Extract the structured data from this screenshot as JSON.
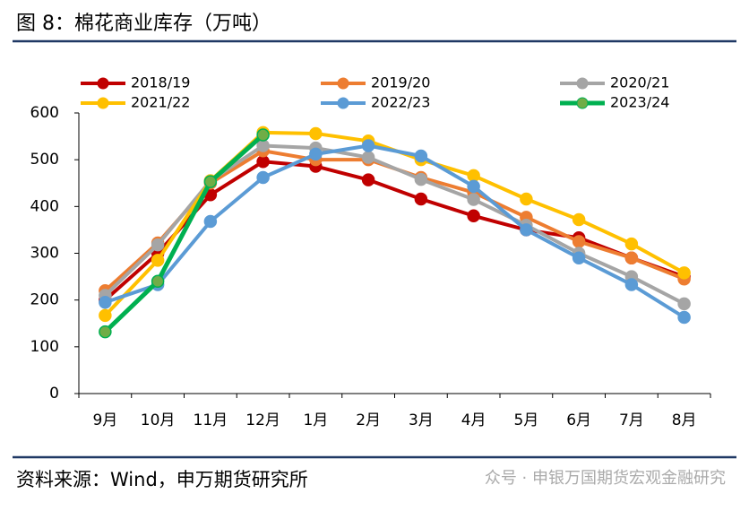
{
  "chart_data": {
    "type": "line",
    "title": "图 8：棉花商业库存（万吨）",
    "source": "资料来源：Wind，申万期货研究所",
    "watermark": "众号 · 申银万国期货宏观金融研究",
    "categories": [
      "9月",
      "10月",
      "11月",
      "12月",
      "1月",
      "2月",
      "3月",
      "4月",
      "5月",
      "6月",
      "7月",
      "8月"
    ],
    "ylim": [
      0,
      600
    ],
    "yticks": [
      0,
      100,
      200,
      300,
      400,
      500,
      600
    ],
    "grid": false,
    "legend": "top",
    "series": [
      {
        "name": "2018/19",
        "color": "#C00000",
        "values": [
          200,
          300,
          425,
          496,
          486,
          457,
          416,
          380,
          350,
          333,
          290,
          250
        ]
      },
      {
        "name": "2019/20",
        "color": "#ED7D31",
        "values": [
          220,
          322,
          450,
          519,
          500,
          500,
          462,
          430,
          377,
          325,
          290,
          245
        ]
      },
      {
        "name": "2020/21",
        "color": "#A5A5A5",
        "values": [
          210,
          318,
          455,
          530,
          525,
          505,
          458,
          415,
          360,
          300,
          250,
          192
        ]
      },
      {
        "name": "2021/22",
        "color": "#FFC000",
        "values": [
          167,
          285,
          455,
          558,
          556,
          540,
          500,
          466,
          416,
          372,
          320,
          258
        ]
      },
      {
        "name": "2022/23",
        "color": "#5B9BD5",
        "values": [
          195,
          233,
          368,
          462,
          512,
          530,
          508,
          443,
          350,
          290,
          233,
          163
        ]
      },
      {
        "name": "2023/24",
        "color": "#00B050",
        "values": [
          132,
          240,
          453,
          553,
          null,
          null,
          null,
          null,
          null,
          null,
          null,
          null
        ]
      }
    ]
  }
}
